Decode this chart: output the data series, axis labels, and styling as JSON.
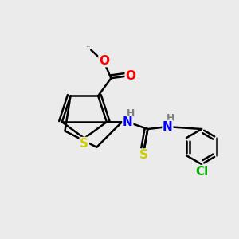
{
  "bg_color": "#ebebeb",
  "atom_colors": {
    "O": "#ff0000",
    "S": "#cccc00",
    "N": "#0000ff",
    "Cl": "#00aa00",
    "C": "#000000",
    "H": "#808080"
  },
  "lw": 1.8,
  "fontsize": 10
}
